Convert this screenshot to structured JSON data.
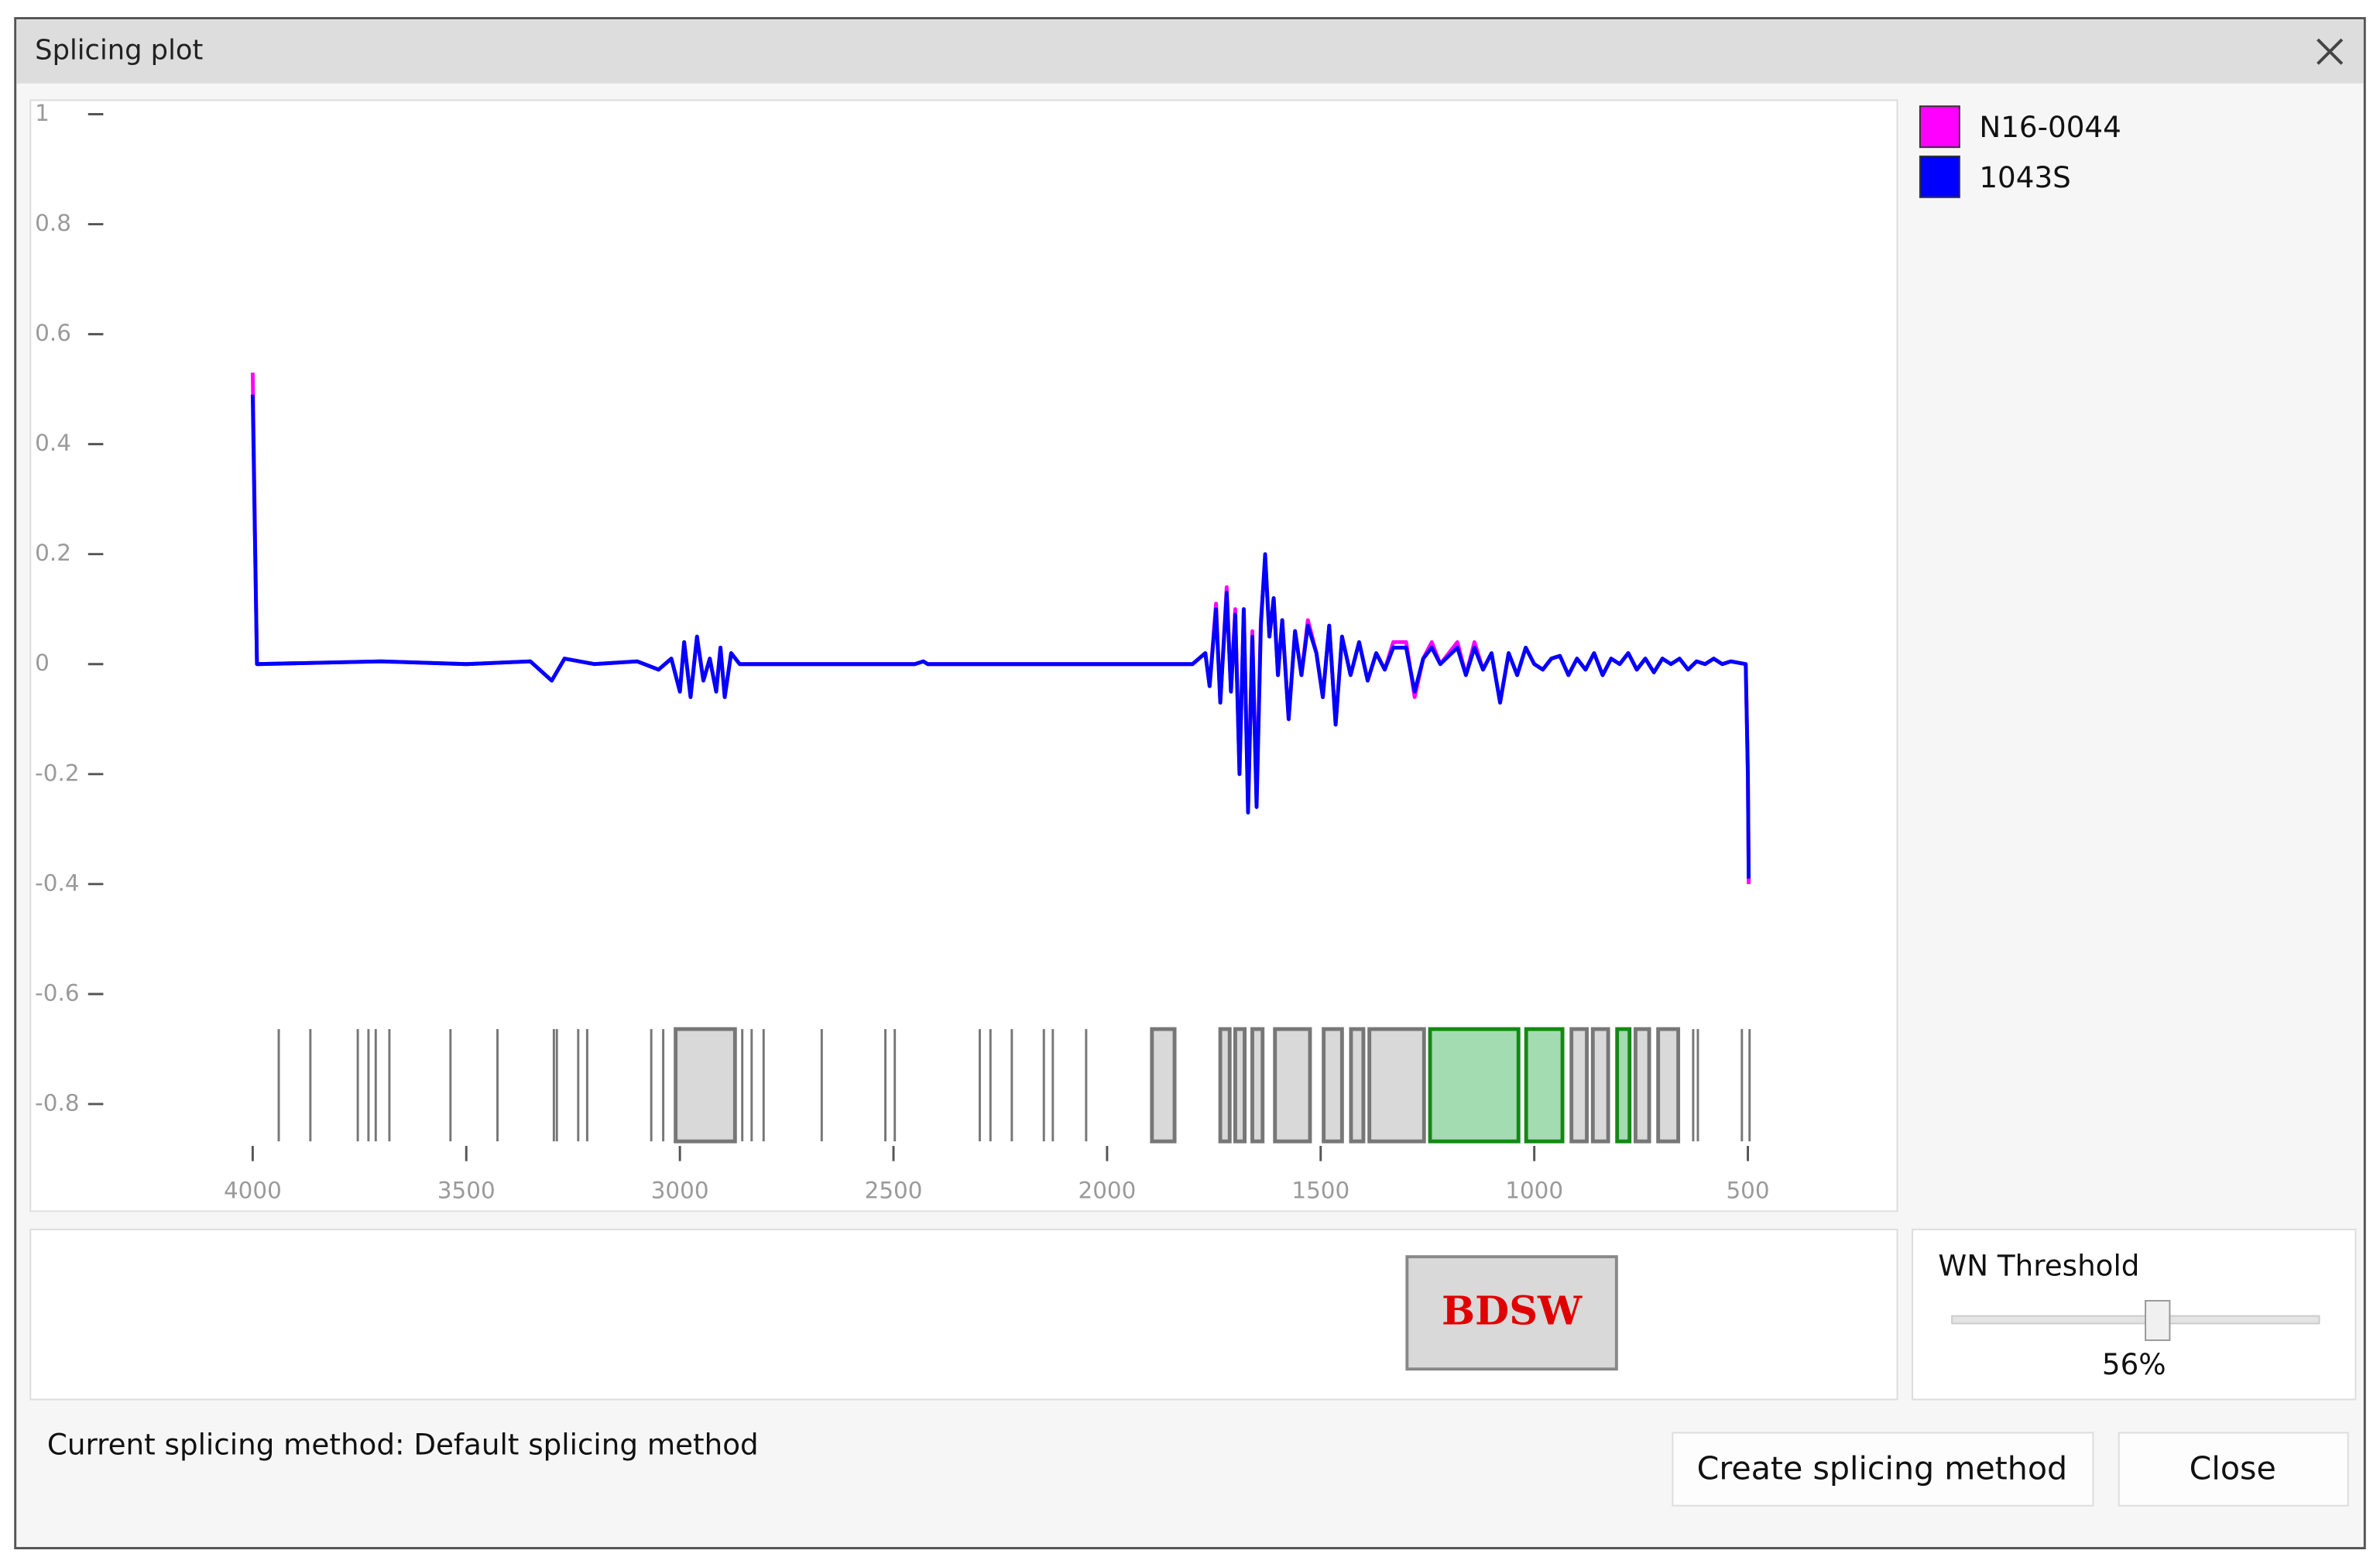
{
  "window": {
    "title": "Splicing plot"
  },
  "chart_data": {
    "type": "line",
    "x": [
      4000,
      3995,
      3990,
      3700,
      3500,
      3350,
      3300,
      3270,
      3200,
      3100,
      3050,
      3020,
      3000,
      2990,
      2975,
      2960,
      2945,
      2930,
      2915,
      2905,
      2895,
      2880,
      2860,
      2700,
      2450,
      2430,
      2420,
      1800,
      1770,
      1760,
      1745,
      1735,
      1720,
      1710,
      1700,
      1690,
      1680,
      1670,
      1660,
      1650,
      1640,
      1630,
      1620,
      1610,
      1600,
      1590,
      1575,
      1560,
      1545,
      1530,
      1510,
      1495,
      1480,
      1465,
      1450,
      1430,
      1410,
      1390,
      1370,
      1350,
      1330,
      1300,
      1280,
      1260,
      1240,
      1220,
      1200,
      1180,
      1160,
      1140,
      1120,
      1100,
      1080,
      1060,
      1040,
      1020,
      1000,
      980,
      960,
      940,
      920,
      900,
      880,
      860,
      840,
      820,
      800,
      780,
      760,
      740,
      720,
      700,
      680,
      660,
      640,
      620,
      600,
      580,
      560,
      540,
      505,
      500,
      498
    ],
    "series": [
      {
        "name": "N16-0044",
        "color": "#ff00ff",
        "values": [
          0.53,
          0.26,
          0,
          0.005,
          0,
          0.005,
          -0.03,
          0.01,
          0,
          0.005,
          -0.01,
          0.01,
          -0.05,
          0.04,
          -0.06,
          0.05,
          -0.03,
          0.01,
          -0.05,
          0.03,
          -0.06,
          0.02,
          0,
          0,
          0,
          0.005,
          0,
          0,
          0.02,
          -0.04,
          0.11,
          -0.07,
          0.14,
          -0.05,
          0.1,
          -0.2,
          0.1,
          -0.26,
          0.06,
          -0.25,
          0.08,
          0.19,
          0.05,
          0.12,
          -0.02,
          0.08,
          -0.1,
          0.06,
          -0.02,
          0.08,
          0.02,
          -0.06,
          0.07,
          -0.11,
          0.05,
          -0.02,
          0.04,
          -0.03,
          0.02,
          -0.01,
          0.04,
          0.04,
          -0.06,
          0.01,
          0.04,
          0,
          0.02,
          0.04,
          -0.02,
          0.04,
          -0.01,
          0.02,
          -0.07,
          0.02,
          -0.02,
          0.03,
          0,
          -0.01,
          0.01,
          0.015,
          -0.02,
          0.01,
          -0.01,
          0.02,
          -0.02,
          0.01,
          0,
          0.02,
          -0.01,
          0.01,
          -0.015,
          0.01,
          0,
          0.01,
          -0.01,
          0.005,
          0,
          0.01,
          0,
          0.005,
          0,
          -0.2,
          -0.4
        ]
      },
      {
        "name": "1043S",
        "color": "#0000ff",
        "values": [
          0.49,
          0.24,
          0,
          0.005,
          0,
          0.005,
          -0.03,
          0.01,
          0,
          0.005,
          -0.01,
          0.01,
          -0.05,
          0.04,
          -0.06,
          0.05,
          -0.03,
          0.01,
          -0.05,
          0.03,
          -0.06,
          0.02,
          0,
          0,
          0,
          0.005,
          0,
          0,
          0.02,
          -0.04,
          0.1,
          -0.07,
          0.13,
          -0.05,
          0.09,
          -0.2,
          0.1,
          -0.27,
          0.05,
          -0.26,
          0.07,
          0.2,
          0.05,
          0.12,
          -0.02,
          0.08,
          -0.1,
          0.06,
          -0.02,
          0.07,
          0.02,
          -0.06,
          0.07,
          -0.11,
          0.05,
          -0.02,
          0.04,
          -0.03,
          0.02,
          -0.01,
          0.03,
          0.03,
          -0.05,
          0.01,
          0.03,
          0,
          0.015,
          0.03,
          -0.02,
          0.03,
          -0.01,
          0.02,
          -0.07,
          0.02,
          -0.02,
          0.03,
          0,
          -0.01,
          0.01,
          0.015,
          -0.02,
          0.01,
          -0.01,
          0.02,
          -0.02,
          0.01,
          0,
          0.02,
          -0.01,
          0.01,
          -0.015,
          0.01,
          0,
          0.01,
          -0.01,
          0.005,
          0,
          0.01,
          0,
          0.005,
          0,
          -0.2,
          -0.39
        ]
      }
    ],
    "xlim": [
      4300,
      200
    ],
    "xticks": [
      4000,
      3500,
      3000,
      2500,
      2000,
      1500,
      1000,
      500
    ],
    "ylim": [
      -0.89,
      1.02
    ],
    "yticks": [
      1,
      0.8,
      0.6,
      0.4,
      0.2,
      0,
      -0.2,
      -0.4,
      -0.6,
      -0.8
    ],
    "region_lines": [
      3939,
      3865,
      3754,
      3729,
      3712,
      3680,
      3537,
      3427,
      3295,
      3288,
      3238,
      3217,
      3067,
      3039,
      2854,
      2832,
      2804,
      2668,
      2519,
      2497,
      2298,
      2273,
      2223,
      2148,
      2127,
      2049,
      1735,
      1717,
      1700,
      1636,
      628,
      617,
      514,
      496
    ],
    "regions": [
      [
        3010,
        2871
      ],
      [
        1895,
        1842
      ],
      [
        1735,
        1713
      ],
      [
        1700,
        1678
      ],
      [
        1660,
        1636
      ],
      [
        1607,
        1525
      ],
      [
        1493,
        1450
      ],
      [
        1429,
        1400
      ],
      [
        1386,
        1258
      ],
      [
        913,
        877
      ],
      [
        863,
        827
      ],
      [
        763,
        731
      ],
      [
        710,
        663
      ]
    ],
    "selected_regions": [
      [
        1244,
        1037
      ],
      [
        1019,
        934
      ],
      [
        806,
        777
      ]
    ],
    "region_color": "#d9d9d9",
    "selected_color": "#a3dcb0"
  },
  "method_button": "BDSW",
  "threshold": {
    "title": "WN Threshold",
    "value": 56,
    "value_label": "56%"
  },
  "status": "Current splicing method: Default splicing method",
  "buttons": [
    "Create splicing method",
    "Close"
  ]
}
